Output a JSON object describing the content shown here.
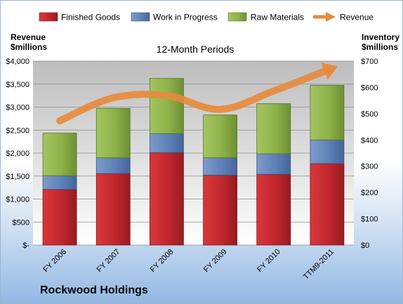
{
  "company_name": "Rockwood Holdings",
  "chart_data": {
    "type": "bar",
    "stacked": true,
    "title": "12-Month Periods",
    "categories": [
      "FY 2006",
      "FY 2007",
      "FY 2008",
      "FY 2009",
      "FY 2010",
      "TTM9-2011"
    ],
    "series": [
      {
        "name": "Finished Goods",
        "axis": "right",
        "color": "#c0272d",
        "values": [
          212,
          272,
          352,
          266,
          269,
          310
        ]
      },
      {
        "name": "Work in Progress",
        "axis": "right",
        "color": "#5f81b8",
        "values": [
          52,
          60,
          72,
          66,
          78,
          90
        ]
      },
      {
        "name": "Raw Materials",
        "axis": "right",
        "color": "#8eb24a",
        "values": [
          162,
          188,
          210,
          163,
          191,
          208
        ]
      },
      {
        "name": "Revenue",
        "type": "line",
        "axis": "left",
        "color": "#e88a3a",
        "values": [
          2700,
          3200,
          3250,
          2950,
          3350,
          3800
        ]
      }
    ],
    "y_left": {
      "label_line1": "Revenue",
      "label_line2": "$millions",
      "range": [
        0,
        4000
      ],
      "ticks": [
        "$-",
        "$500",
        "$1,000",
        "$1,500",
        "$2,000",
        "$2,500",
        "$3,000",
        "$3,500",
        "$4,000"
      ]
    },
    "y_right": {
      "label_line1": "Inventory",
      "label_line2": "$millions",
      "range": [
        0,
        700
      ],
      "ticks": [
        "$0",
        "$100",
        "$200",
        "$300",
        "$400",
        "$500",
        "$600",
        "$700"
      ]
    },
    "grid": true,
    "legend_position": "top"
  }
}
